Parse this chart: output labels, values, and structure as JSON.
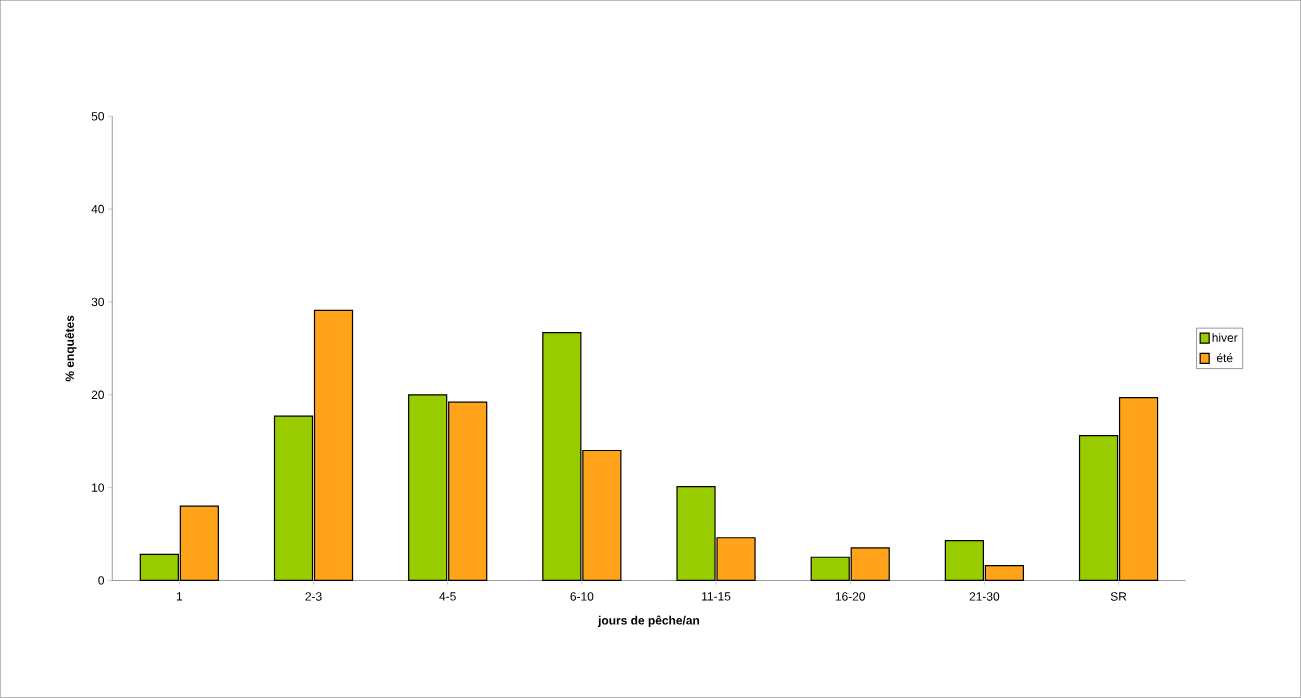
{
  "chart_data": {
    "type": "bar",
    "xlabel": "jours de pêche/an",
    "ylabel": "% enquêtes",
    "categories": [
      "1",
      "2-3",
      "4-5",
      "6-10",
      "11-15",
      "16-20",
      "21-30",
      "SR"
    ],
    "series": [
      {
        "name": "hiver",
        "color": "#99cc00",
        "values": [
          2.8,
          17.7,
          20.0,
          26.7,
          10.1,
          2.5,
          4.3,
          15.6
        ]
      },
      {
        "name": "été",
        "color": "#ffa31a",
        "values": [
          8.0,
          29.1,
          19.2,
          14.0,
          4.6,
          3.5,
          1.6,
          19.7
        ]
      }
    ],
    "ylim": [
      0,
      50
    ],
    "yticks": [
      0,
      10,
      20,
      30,
      40,
      50
    ],
    "grid": false,
    "legend": "right"
  }
}
